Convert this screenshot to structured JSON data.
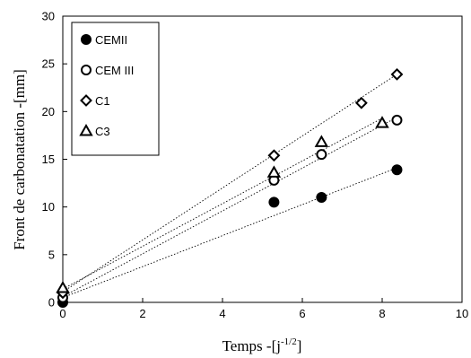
{
  "chart_data": {
    "type": "scatter",
    "xlabel": "Temps -[j",
    "xlabel_sup": "-1/2",
    "xlabel_end": "]",
    "ylabel": "Front de carbonatation -[mm]",
    "xlim": [
      0,
      10
    ],
    "ylim": [
      0,
      30
    ],
    "xticks": [
      "0",
      "2",
      "4",
      "6",
      "8",
      "10"
    ],
    "yticks": [
      "0",
      "5",
      "10",
      "15",
      "20",
      "25",
      "30"
    ],
    "grid": false,
    "legend_position": "top-left",
    "series": [
      {
        "name": "CEMII",
        "marker": "filled-circle",
        "points": [
          [
            0,
            0
          ],
          [
            5.29,
            10.5
          ],
          [
            6.48,
            11.0
          ],
          [
            8.37,
            13.9
          ]
        ],
        "trendline": [
          [
            0,
            0.5
          ],
          [
            8.37,
            14.1
          ]
        ]
      },
      {
        "name": "CEM III",
        "marker": "open-circle",
        "points": [
          [
            0,
            0.5
          ],
          [
            5.29,
            12.8
          ],
          [
            6.48,
            15.5
          ],
          [
            8.37,
            19.1
          ]
        ],
        "trendline": [
          [
            0,
            0.6
          ],
          [
            8.37,
            19.4
          ]
        ]
      },
      {
        "name": "C1",
        "marker": "open-diamond",
        "points": [
          [
            0,
            1.0
          ],
          [
            5.29,
            15.4
          ],
          [
            7.48,
            20.9
          ],
          [
            8.37,
            23.9
          ]
        ],
        "trendline": [
          [
            0,
            1.1
          ],
          [
            8.37,
            23.9
          ]
        ]
      },
      {
        "name": "C3",
        "marker": "open-triangle",
        "points": [
          [
            0,
            1.5
          ],
          [
            5.29,
            13.6
          ],
          [
            6.48,
            16.8
          ],
          [
            8.0,
            18.8
          ]
        ],
        "trendline": [
          [
            0,
            1.4
          ],
          [
            8.0,
            19.3
          ]
        ]
      }
    ]
  }
}
